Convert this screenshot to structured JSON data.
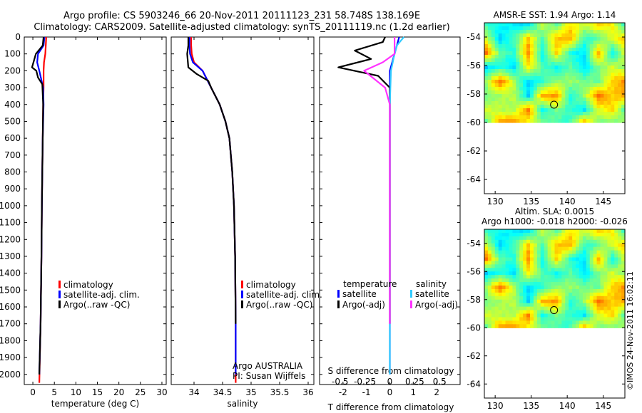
{
  "header": {
    "line1": "Argo profile: CS 5903246_66 20-Nov-2011 20111123_231 58.748S 138.169E",
    "line2": "Climatology: CARS2009. Satellite-adjusted climatology: synTS_20111119.nc (1.2d earlier)"
  },
  "colors": {
    "climatology": "#ff0000",
    "satellite": "#0000ff",
    "argo": "#000000",
    "temp_satellite": "#0000ff",
    "sal_satellite": "#33ccff",
    "sal_argo": "#ff33ff"
  },
  "chart_data": [
    {
      "type": "line",
      "panel": "temperature",
      "xlabel": "temperature (deg C)",
      "xlim": [
        -2,
        31
      ],
      "xticks": [
        "0",
        "5",
        "10",
        "15",
        "20",
        "25",
        "30"
      ],
      "ylim": [
        0,
        2060
      ],
      "yticks": [
        "0",
        "100",
        "200",
        "300",
        "400",
        "500",
        "600",
        "700",
        "800",
        "900",
        "1000",
        "1100",
        "1200",
        "1300",
        "1400",
        "1500",
        "1600",
        "1700",
        "1800",
        "1900",
        "2000"
      ],
      "legend": [
        "climatology",
        "satellite-adj. clim.",
        "Argo(..raw -QC)"
      ],
      "series": [
        {
          "key": "climatology",
          "x": [
            3.1,
            3.0,
            2.9,
            2.6,
            2.5,
            2.5,
            2.4,
            2.3,
            2.2,
            2.1,
            2.0,
            1.8,
            1.5
          ],
          "y": [
            0,
            50,
            100,
            150,
            200,
            300,
            400,
            600,
            800,
            1000,
            1300,
            1700,
            2050
          ]
        },
        {
          "key": "satellite",
          "x": [
            2.7,
            2.5,
            1.2,
            1.0,
            1.5,
            2.4,
            2.5,
            2.3,
            2.2,
            2.1,
            2.0,
            1.8,
            1.5
          ],
          "y": [
            0,
            50,
            100,
            150,
            200,
            300,
            400,
            600,
            800,
            1000,
            1300,
            1700,
            2000
          ]
        },
        {
          "key": "argo",
          "x": [
            2.5,
            2.3,
            0.7,
            -0.2,
            0.8,
            1.2,
            2.2,
            2.4,
            2.3,
            2.2,
            2.1,
            2.0,
            1.8,
            1.5
          ],
          "y": [
            0,
            50,
            100,
            180,
            200,
            240,
            280,
            400,
            600,
            800,
            1000,
            1300,
            1700,
            2000
          ]
        }
      ]
    },
    {
      "type": "line",
      "panel": "salinity",
      "xlabel": "salinity",
      "xlim": [
        33.6,
        36.1
      ],
      "xticks": [
        "34",
        "34.5",
        "35",
        "35.5",
        "36"
      ],
      "ylim": [
        0,
        2060
      ],
      "legend": [
        "climatology",
        "satellite-adj. clim.",
        "Argo(..raw -QC)"
      ],
      "series": [
        {
          "key": "climatology",
          "x": [
            33.95,
            33.95,
            33.96,
            34.0,
            34.15,
            34.3,
            34.45,
            34.55,
            34.62,
            34.67,
            34.7,
            34.72,
            34.73,
            34.73
          ],
          "y": [
            0,
            50,
            100,
            150,
            200,
            300,
            400,
            500,
            600,
            800,
            1000,
            1300,
            1700,
            2050
          ]
        },
        {
          "key": "satellite",
          "x": [
            33.92,
            33.92,
            33.93,
            33.98,
            34.15,
            34.3,
            34.45,
            34.55,
            34.62,
            34.67,
            34.7,
            34.72,
            34.73,
            34.73
          ],
          "y": [
            0,
            50,
            100,
            150,
            200,
            300,
            400,
            500,
            600,
            800,
            1000,
            1300,
            1700,
            2000
          ]
        },
        {
          "key": "argo",
          "x": [
            33.9,
            33.9,
            33.88,
            33.9,
            34.05,
            34.25,
            34.3,
            34.45,
            34.55,
            34.62,
            34.67,
            34.7,
            34.72,
            34.73
          ],
          "y": [
            0,
            50,
            100,
            180,
            220,
            260,
            300,
            400,
            500,
            600,
            800,
            1000,
            1300,
            1700
          ]
        }
      ],
      "annotation": [
        "Argo AUSTRALIA",
        "PI: Susan Wijffels"
      ]
    },
    {
      "type": "line",
      "panel": "difference",
      "xlabel": "T difference from climatology",
      "xlabel_top": "S difference from climatology",
      "xlim": [
        -3,
        3
      ],
      "xticks": [
        "-2",
        "-1",
        "0",
        "1",
        "2"
      ],
      "xticks_top": [
        "-0.5",
        "-0.25",
        "0",
        "0.25",
        "0.5"
      ],
      "ylim": [
        0,
        2060
      ],
      "legend_headers": [
        "temperature",
        "salinity"
      ],
      "legend": [
        "satellite",
        "Argo(-adj)",
        "satellite",
        "Argo(-adj)"
      ],
      "series": [
        {
          "key": "temp_satellite",
          "x": [
            0.4,
            0.3,
            0.2,
            0.0,
            0.0,
            0.0,
            0.0,
            0.0,
            0.0,
            0.0
          ],
          "y": [
            0,
            50,
            100,
            200,
            300,
            400,
            600,
            1000,
            1500,
            2000
          ]
        },
        {
          "key": "argo",
          "x": [
            -0.2,
            -0.3,
            -1.5,
            -0.8,
            -2.2,
            -0.5,
            0.0,
            0.0,
            0.0,
            0.0,
            0.0
          ],
          "y": [
            0,
            30,
            80,
            130,
            180,
            230,
            300,
            400,
            600,
            1000,
            1700
          ]
        },
        {
          "key": "sal_satellite",
          "x": [
            0.6,
            0.3,
            0.2,
            0.05,
            0.0,
            0.0,
            0.0,
            0.0,
            0.0
          ],
          "y": [
            0,
            50,
            100,
            200,
            400,
            600,
            1000,
            1500,
            2000
          ]
        },
        {
          "key": "sal_argo",
          "x": [
            0.2,
            0.2,
            -0.3,
            -1.1,
            -0.2,
            0.0,
            0.0,
            0.0,
            0.0
          ],
          "y": [
            0,
            100,
            150,
            200,
            300,
            400,
            600,
            1000,
            1700
          ]
        }
      ]
    },
    {
      "type": "heatmap",
      "panel": "sst_map",
      "title": "AMSR-E SST: 1.94 Argo: 1.14",
      "xlim": [
        128.5,
        148
      ],
      "ylim": [
        -65,
        -53
      ],
      "xticks": [
        "130",
        "135",
        "140",
        "145"
      ],
      "yticks": [
        "-54",
        "-56",
        "-58",
        "-60",
        "-62",
        "-64"
      ],
      "marker": {
        "lon": 138.169,
        "lat": -58.748
      },
      "data_extent_lat": [
        -60,
        -53
      ]
    },
    {
      "type": "heatmap",
      "panel": "sla_map",
      "title": "Altim. SLA: 0.0015",
      "subtitle": "Argo h1000: -0.018 h2000: -0.026",
      "xlim": [
        128.5,
        148
      ],
      "ylim": [
        -65,
        -53
      ],
      "xticks": [
        "130",
        "135",
        "140",
        "145"
      ],
      "yticks": [
        "-54",
        "-56",
        "-58",
        "-60",
        "-62",
        "-64"
      ],
      "marker": {
        "lon": 138.169,
        "lat": -58.748
      },
      "data_extent_lat": [
        -60,
        -53
      ]
    }
  ],
  "credit": "©IMOS 24-Nov-2011 16:02:11"
}
